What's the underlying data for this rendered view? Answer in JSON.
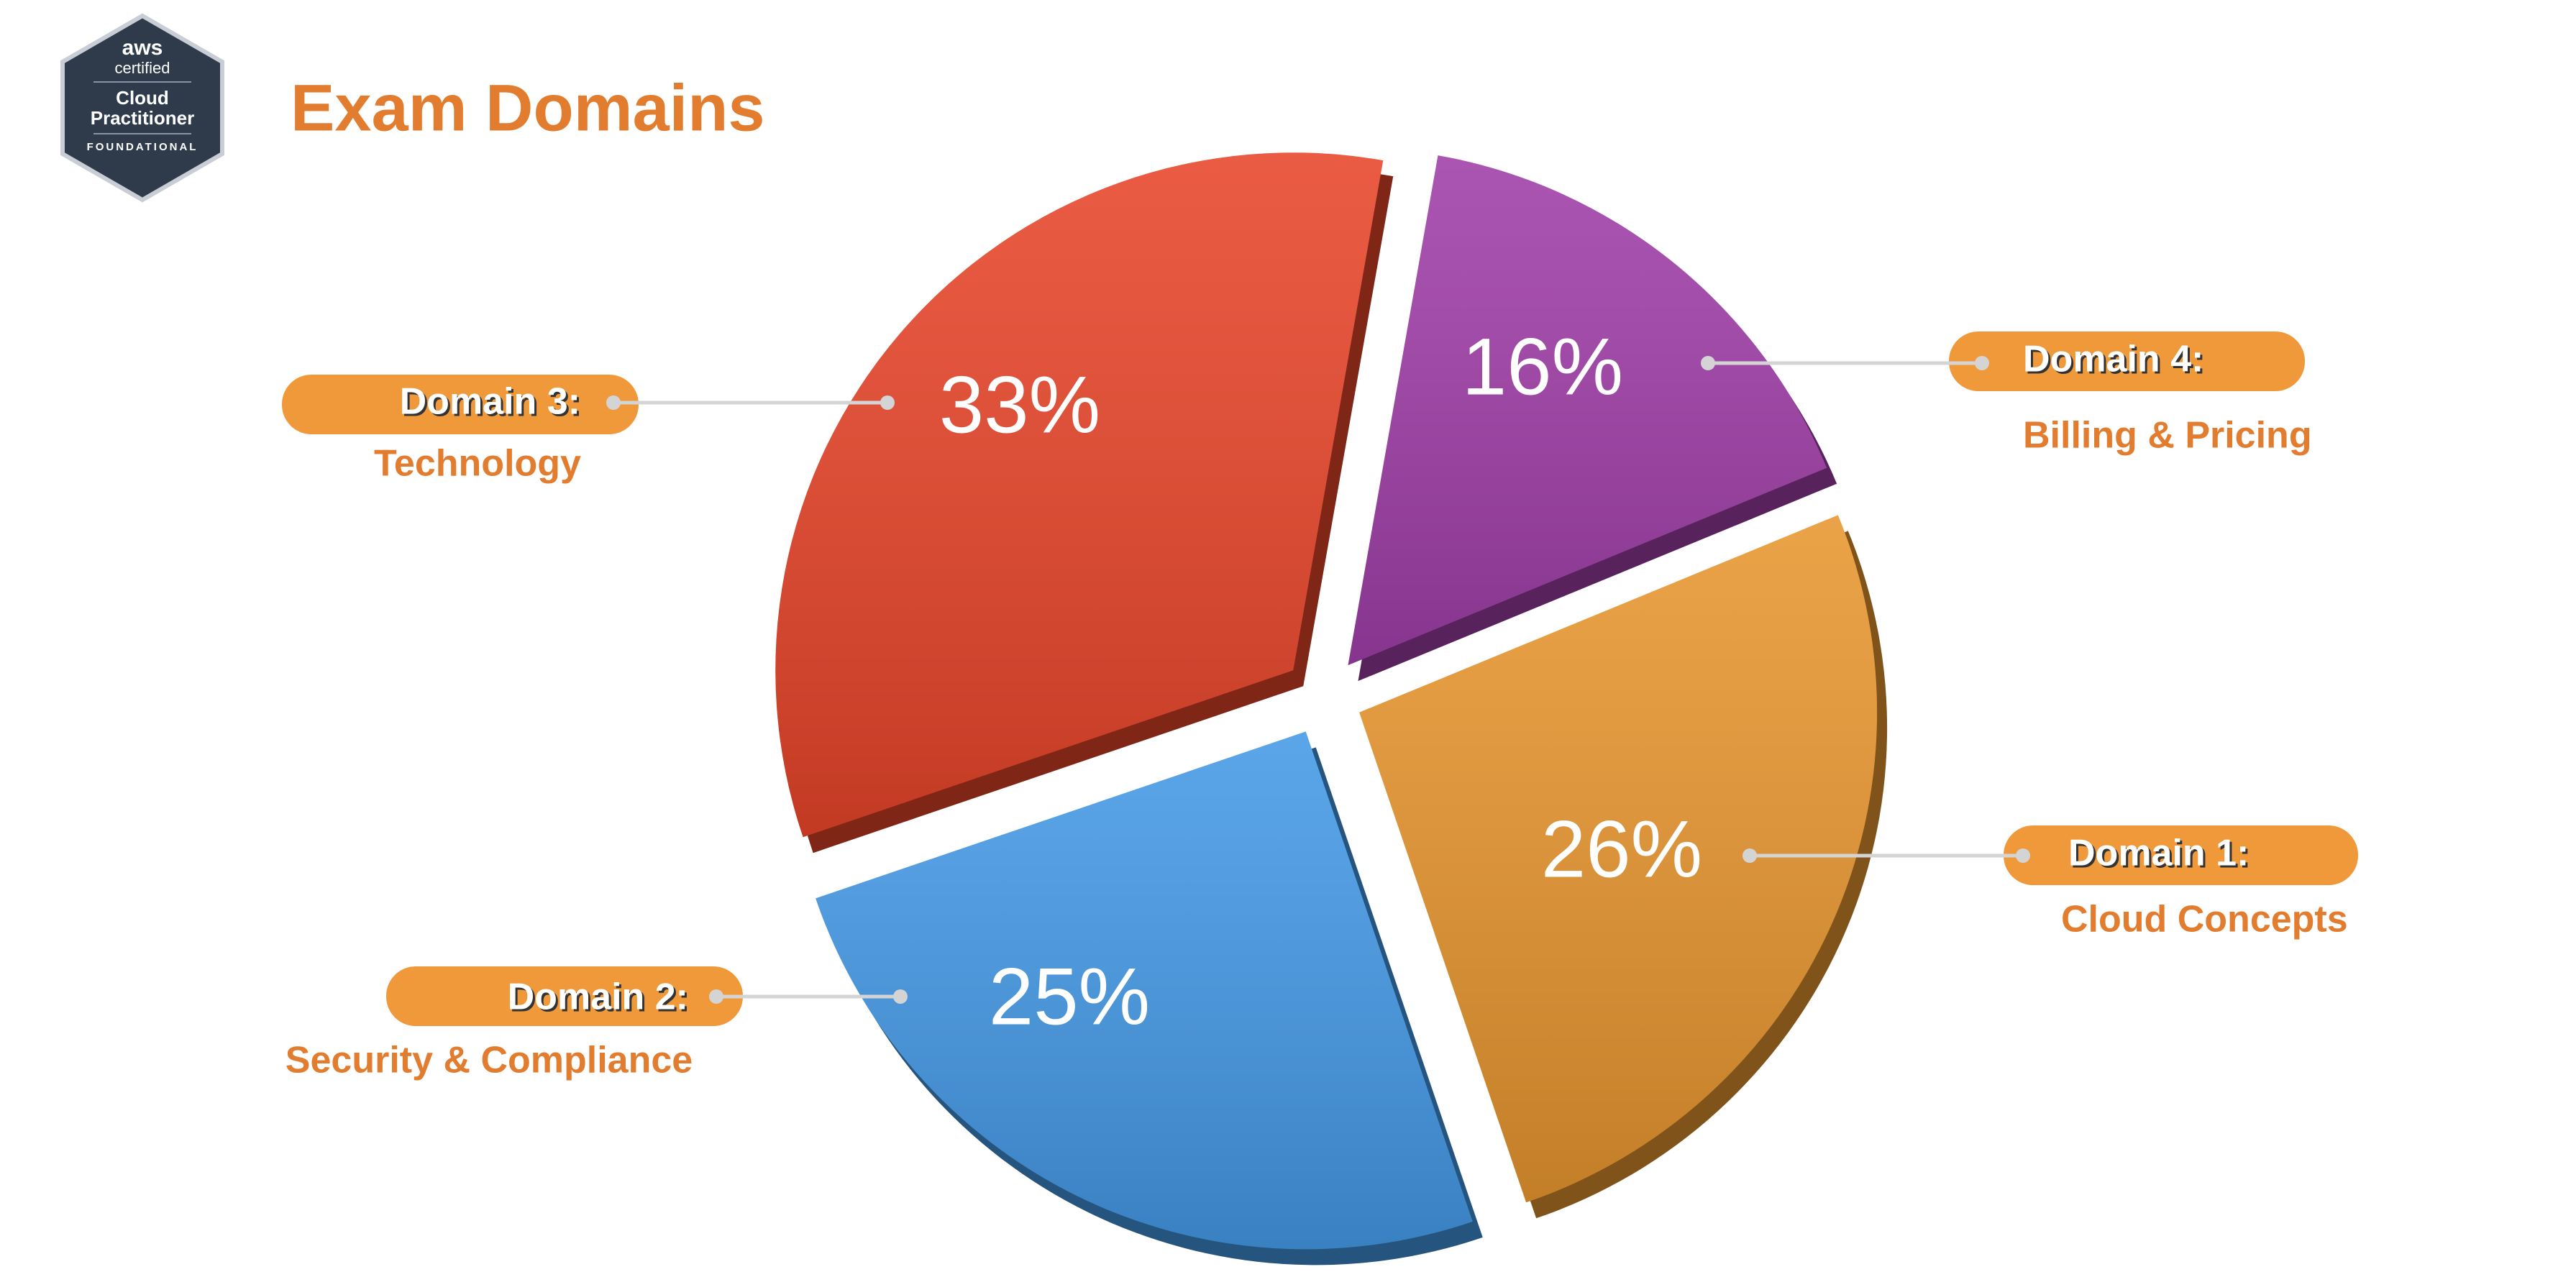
{
  "badge": {
    "brand": "aws",
    "line1": "certified",
    "line2": "Cloud",
    "line3": "Practitioner",
    "line4": "FOUNDATIONAL"
  },
  "chart_data": {
    "type": "pie",
    "title": "Exam Domains",
    "categories": [
      "Domain 1:",
      "Domain 2:",
      "Domain 3:",
      "Domain 4:"
    ],
    "descriptions": [
      "Cloud Concepts",
      "Security & Compliance",
      "Technology",
      "Billing & Pricing"
    ],
    "values": [
      26,
      25,
      33,
      16
    ],
    "value_labels": [
      "26%",
      "25%",
      "33%",
      "16%"
    ],
    "colors": [
      "#e8962f",
      "#4499e6",
      "#e8452a",
      "#a03ea8"
    ]
  }
}
